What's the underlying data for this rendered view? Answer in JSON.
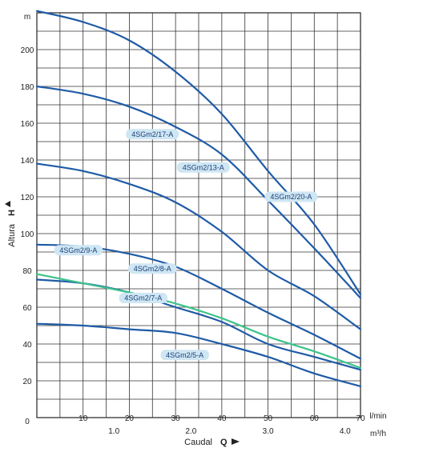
{
  "chart_data": {
    "type": "line",
    "x_unit": "l/min",
    "x_unit2": "m³/h",
    "y_unit": "m",
    "xlabel": "Caudal",
    "xlabel_symbol": "Q",
    "ylabel": "Altura",
    "ylabel_symbol": "H",
    "xlim": [
      0,
      70
    ],
    "ylim": [
      0,
      220
    ],
    "grid": true,
    "x_ticks": [
      "10",
      "20",
      "30",
      "40",
      "50",
      "60",
      "70"
    ],
    "x_ticks2": [
      "1.0",
      "2.0",
      "3.0",
      "4.0"
    ],
    "x_ticks2_values": [
      16.67,
      33.33,
      50,
      66.67
    ],
    "y_ticks": [
      "20",
      "40",
      "60",
      "80",
      "100",
      "120",
      "140",
      "160",
      "180",
      "200"
    ],
    "y_zero_label": "0",
    "series": [
      {
        "name": "4SGm2/20-A",
        "color": "#1f5ba6",
        "label_at": [
          55,
          120
        ],
        "x": [
          0,
          10,
          20,
          30,
          40,
          50,
          60,
          70
        ],
        "y": [
          221,
          215,
          205,
          188,
          165,
          134,
          105,
          67
        ]
      },
      {
        "name": "4SGm2/17-A",
        "color": "#1f5ba6",
        "label_at": [
          25,
          154
        ],
        "x": [
          0,
          10,
          20,
          30,
          40,
          50,
          60,
          70
        ],
        "y": [
          180,
          176,
          169,
          158,
          143,
          118,
          92,
          65
        ]
      },
      {
        "name": "4SGm2/13-A",
        "color": "#1f5ba6",
        "label_at": [
          36,
          136
        ],
        "x": [
          0,
          10,
          20,
          30,
          40,
          50,
          60,
          70
        ],
        "y": [
          138,
          134,
          127,
          117,
          101,
          80,
          66,
          48
        ]
      },
      {
        "name": "4SGm2/9-A",
        "color": "#1f5ba6",
        "label_at": [
          9,
          91
        ],
        "x": [
          0,
          10,
          20,
          30,
          40,
          50,
          60,
          70
        ],
        "y": [
          94,
          93,
          89,
          82,
          70,
          57,
          45,
          32
        ]
      },
      {
        "name": "4SGm2/8-A",
        "color": "#1f5ba6",
        "label_at": [
          25,
          81
        ],
        "x": [
          0,
          10,
          20,
          30,
          40,
          50,
          60,
          70
        ],
        "y": [
          75,
          73,
          68,
          60,
          52,
          40,
          33,
          26
        ]
      },
      {
        "name": "4SGm2/7-A",
        "color": "#3cc48a",
        "label_at": [
          23,
          65
        ],
        "x": [
          0,
          10,
          20,
          30,
          40,
          50,
          60,
          70
        ],
        "y": [
          78,
          73,
          68,
          62,
          54,
          44,
          36,
          27
        ]
      },
      {
        "name": "4SGm2/5-A",
        "color": "#1f5ba6",
        "label_at": [
          32,
          34
        ],
        "x": [
          0,
          10,
          20,
          30,
          40,
          50,
          60,
          70
        ],
        "y": [
          51,
          50,
          48,
          46,
          40,
          33,
          24,
          17
        ]
      }
    ]
  }
}
